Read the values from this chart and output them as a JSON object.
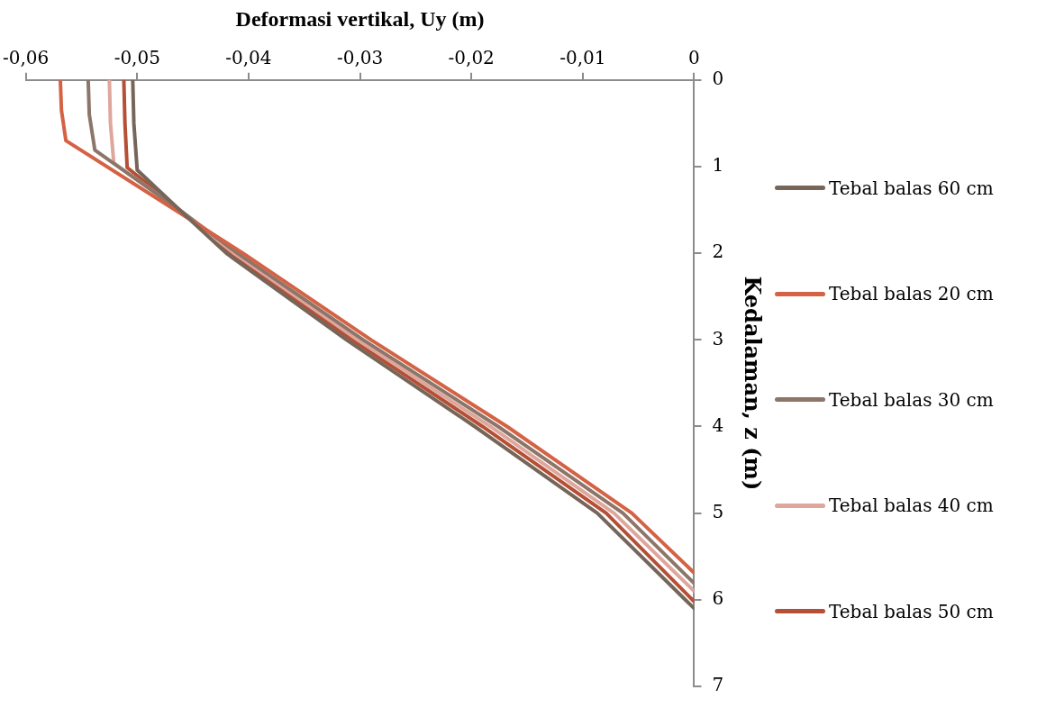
{
  "chart_data": {
    "type": "line",
    "xlabel": "Deformasi vertikal, Uy (m)",
    "ylabel": "Kedalaman, z (m)",
    "xlim": [
      -0.06,
      0
    ],
    "xticks": [
      {
        "value": -0.06,
        "label": "-0,06"
      },
      {
        "value": -0.05,
        "label": "-0,05"
      },
      {
        "value": -0.04,
        "label": "-0,04"
      },
      {
        "value": -0.03,
        "label": "-0,03"
      },
      {
        "value": -0.02,
        "label": "-0,02"
      },
      {
        "value": -0.01,
        "label": "-0,01"
      },
      0
    ],
    "ylim": [
      7,
      0
    ],
    "yticks": [
      0,
      1,
      2,
      3,
      4,
      5,
      6,
      7
    ],
    "grid": false,
    "legend": "right",
    "marker": "none",
    "line_style": "solid",
    "series": [
      {
        "name": "Tebal balas 60 cm",
        "color": "#76665a",
        "x": [
          -0.0504,
          -0.0503,
          -0.05,
          -0.0462,
          -0.042,
          -0.0312,
          -0.0197,
          -0.0087,
          0
        ],
        "values": [
          0,
          0.5,
          1.04,
          1.5,
          2,
          3,
          4,
          5,
          6.1
        ]
      },
      {
        "name": "Tebal balas 20 cm",
        "color": "#d46244",
        "x": [
          -0.0569,
          -0.0568,
          -0.0564,
          -0.0466,
          -0.0405,
          -0.029,
          -0.0168,
          -0.0056,
          0
        ],
        "values": [
          0,
          0.35,
          0.7,
          1.5,
          2,
          3,
          4,
          5,
          5.69
        ]
      },
      {
        "name": "Tebal balas 30 cm",
        "color": "#8b7669",
        "x": [
          -0.0544,
          -0.0543,
          -0.0538,
          -0.0462,
          -0.041,
          -0.0297,
          -0.0176,
          -0.0064,
          0
        ],
        "values": [
          0,
          0.4,
          0.81,
          1.5,
          2,
          3,
          4,
          5,
          5.81
        ]
      },
      {
        "name": "Tebal balas 40 cm",
        "color": "#dfa69c",
        "x": [
          -0.0525,
          -0.0524,
          -0.0521,
          -0.0462,
          -0.0413,
          -0.0302,
          -0.0183,
          -0.0072,
          0
        ],
        "values": [
          0,
          0.5,
          0.96,
          1.5,
          2,
          3,
          4,
          5,
          5.9
        ]
      },
      {
        "name": "Tebal balas 50 cm",
        "color": "#b54f36",
        "x": [
          -0.0512,
          -0.0511,
          -0.0509,
          -0.0462,
          -0.0416,
          -0.0307,
          -0.019,
          -0.0079,
          0
        ],
        "values": [
          0,
          0.5,
          1.01,
          1.5,
          2,
          3,
          4,
          5,
          6.02
        ]
      }
    ]
  }
}
